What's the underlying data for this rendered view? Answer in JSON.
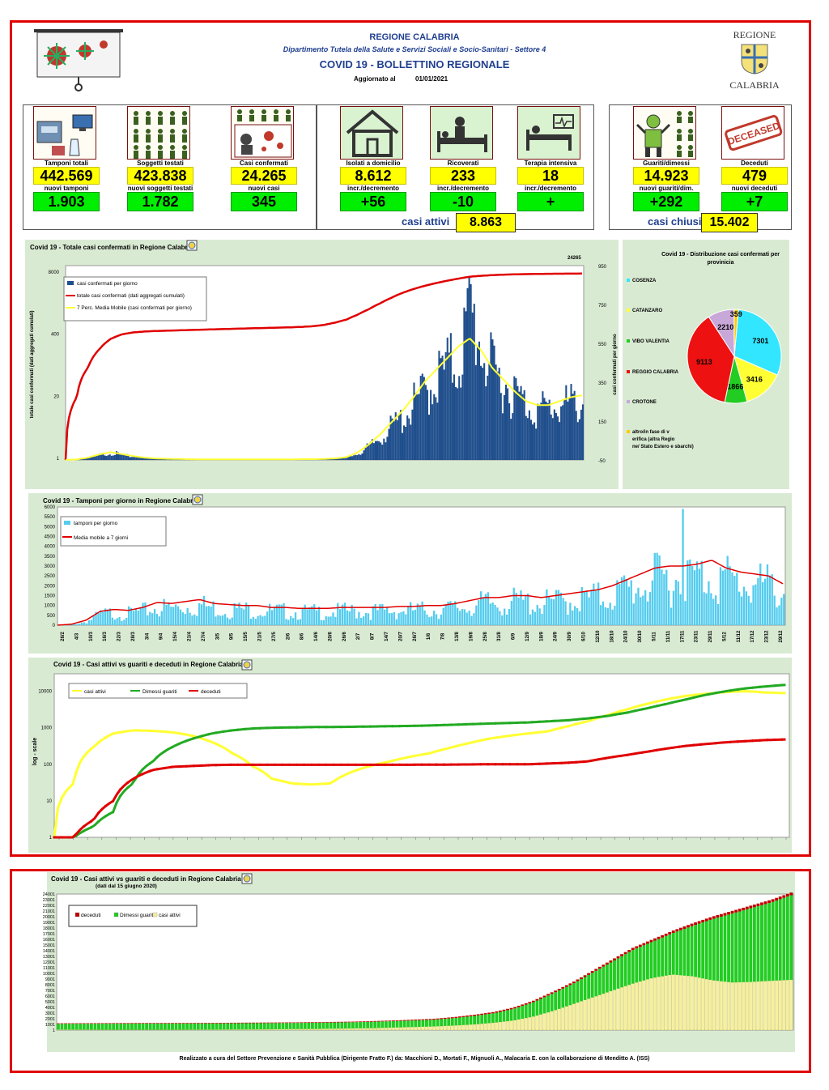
{
  "header": {
    "region": "REGIONE CALABRIA",
    "department": "Dipartimento Tutela della Salute e Servizi Sociali e Socio-Sanitari - Settore 4",
    "title": "COVID 19 - BOLLETTINO REGIONALE",
    "updated_label": "Aggiornato al",
    "updated_date": "01/01/2021",
    "logo_top": "REGIONE",
    "logo_bottom": "CALABRIA"
  },
  "cards": [
    {
      "label": "Tamponi totali",
      "value": "442.569",
      "label2": "nuovi tamponi",
      "value2": "1.903"
    },
    {
      "label": "Soggetti testati",
      "value": "423.838",
      "label2": "nuovi soggetti testati",
      "value2": "1.782"
    },
    {
      "label": "Casi confermati",
      "value": "24.265",
      "label2": "nuovi casi",
      "value2": "345"
    },
    {
      "label": "Isolati a domicilio",
      "value": "8.612",
      "label2": "incr./decremento",
      "value2": "+56"
    },
    {
      "label": "Ricoverati",
      "value": "233",
      "label2": "incr./decremento",
      "value2": "-10"
    },
    {
      "label": "Terapia intensiva",
      "value": "18",
      "label2": "incr./decremento",
      "value2": "+"
    },
    {
      "label": "Guariti/dimessi",
      "value": "14.923",
      "label2": "nuovi guariti/dim.",
      "value2": "+292"
    },
    {
      "label": "Deceduti",
      "value": "479",
      "label2": "nuovi deceduti",
      "value2": "+7"
    }
  ],
  "summary": {
    "attivi_label": "casi attivi",
    "attivi_value": "8.863",
    "chiusi_label": "casi chiusi",
    "chiusi_value": "15.402",
    "deceased_stamp": "DECEASED"
  },
  "colors": {
    "frame": "#e00000",
    "bar_blue": "#1f4e8c",
    "red": "#e00000",
    "yellow": "#ffff33",
    "cyan": "#00e5ff",
    "green": "#22aa22",
    "light_blue": "#55ccee",
    "panel_bg": "#d9ead3"
  },
  "icons": [
    "lab-machine-icon",
    "people-crowd-icon",
    "virus-patient-icon",
    "house-icon",
    "hospital-bed-icon",
    "icu-bed-icon",
    "recovered-person-icon",
    "deceased-stamp-icon"
  ],
  "chart_data": [
    {
      "type": "bar+line",
      "title": "Covid 19 - Totale casi confermati in Regione Calabria",
      "ylabel_left": "totale casi confermati (dati aggregati cumulati)",
      "ylabel_right": "casi confermati per giorno",
      "left_ticks": [
        "8000",
        "400",
        "20",
        "1"
      ],
      "right_ticks": [
        "950",
        "750",
        "550",
        "350",
        "150",
        "-50"
      ],
      "peak_label": "24265",
      "legend": [
        "casi confermati per giorno",
        "totale casi confermati (dati aggregati cumulati)",
        "7 Perc. Media Mobile (casi confermati per giorno)"
      ],
      "daily_profile": [
        0,
        2,
        10,
        30,
        45,
        30,
        18,
        10,
        8,
        5,
        4,
        3,
        3,
        2,
        2,
        2,
        2,
        2,
        2,
        3,
        3,
        4,
        4,
        5,
        8,
        15,
        40,
        80,
        140,
        200,
        260,
        340,
        420,
        500,
        560,
        620,
        900,
        700,
        520,
        480,
        400,
        340,
        300,
        320,
        330,
        340,
        350
      ],
      "ma_profile": [
        0,
        3,
        12,
        28,
        40,
        30,
        20,
        12,
        8,
        6,
        5,
        4,
        3,
        3,
        3,
        3,
        3,
        3,
        3,
        3,
        3,
        4,
        4,
        5,
        8,
        14,
        38,
        78,
        130,
        190,
        250,
        320,
        400,
        460,
        520,
        580,
        620,
        560,
        470,
        410,
        350,
        300,
        280,
        280,
        300,
        320,
        330
      ],
      "cum_profile": [
        1,
        30,
        150,
        400,
        700,
        900,
        1000,
        1050,
        1080,
        1100,
        1120,
        1140,
        1160,
        1180,
        1200,
        1220,
        1240,
        1260,
        1280,
        1300,
        1320,
        1350,
        1400,
        1500,
        1700,
        2000,
        2600,
        3500,
        4800,
        6500,
        8500,
        10500,
        12500,
        14500,
        16500,
        18500,
        20500,
        21500,
        22300,
        22900,
        23300,
        23600,
        23800,
        24000,
        24100,
        24200,
        24265
      ]
    },
    {
      "type": "pie",
      "title": "Covid 19 - Distribuzione casi confermati per provinicia",
      "categories": [
        "COSENZA",
        "CATANZARO",
        "VIBO VALENTIA",
        "REGGIO CALABRIA",
        "CROTONE",
        "altro/in fase di verifica (altra Regione/ Stato Estero e sbarchi)"
      ],
      "values": [
        7301,
        3416,
        1866,
        9113,
        2210,
        359
      ],
      "colors": [
        "#33e6ff",
        "#ffff33",
        "#22cc22",
        "#ee1111",
        "#c8a8d8",
        "#ffcc00"
      ]
    },
    {
      "type": "bar+line",
      "title": "Covid 19 - Tamponi per giorno in Regione Calabria",
      "legend": [
        "tamponi per giorno",
        "Media mobile a 7 giorni"
      ],
      "y_ticks": [
        "6000",
        "5500",
        "5000",
        "4500",
        "4000",
        "3500",
        "3000",
        "2500",
        "2000",
        "1500",
        "1000",
        "500",
        "0"
      ],
      "ylim": [
        0,
        6000
      ],
      "x_ticks": [
        "26/2",
        "4/3",
        "10/3",
        "16/3",
        "22/3",
        "28/3",
        "3/4",
        "9/4",
        "15/4",
        "21/4",
        "27/4",
        "3/5",
        "9/5",
        "15/5",
        "21/5",
        "27/5",
        "2/6",
        "8/6",
        "14/6",
        "20/6",
        "26/6",
        "2/7",
        "8/7",
        "14/7",
        "20/7",
        "26/7",
        "1/8",
        "7/8",
        "13/8",
        "19/8",
        "25/8",
        "31/8",
        "6/9",
        "12/9",
        "18/9",
        "24/9",
        "30/9",
        "6/10",
        "12/10",
        "18/10",
        "24/10",
        "30/10",
        "5/11",
        "11/11",
        "17/11",
        "23/11",
        "29/11",
        "5/12",
        "11/12",
        "17/12",
        "23/12",
        "29/12"
      ],
      "ma_profile": [
        0,
        50,
        250,
        700,
        800,
        750,
        900,
        1150,
        1100,
        1200,
        1300,
        1100,
        1050,
        1000,
        1000,
        900,
        900,
        850,
        850,
        850,
        900,
        900,
        900,
        900,
        950,
        950,
        1000,
        1000,
        1100,
        1250,
        1400,
        1400,
        1500,
        1500,
        1400,
        1500,
        1600,
        1700,
        1800,
        2000,
        2300,
        2600,
        2900,
        3000,
        3000,
        3100,
        3300,
        2900,
        2700,
        2600,
        2500,
        2100
      ]
    },
    {
      "type": "line",
      "title": "Covid 19 - Casi attivi vs guariti e deceduti in Regione Calabria",
      "ylabel": "log - scale",
      "y_ticks": [
        "10000",
        "1000",
        "100",
        "10",
        "1"
      ],
      "legend": [
        "casi attivi",
        "Dimessi guariti",
        "deceduti"
      ],
      "series": [
        {
          "name": "casi attivi",
          "values": [
            1,
            30,
            300,
            700,
            850,
            820,
            750,
            600,
            400,
            200,
            90,
            40,
            30,
            28,
            30,
            60,
            90,
            120,
            160,
            200,
            280,
            380,
            500,
            600,
            700,
            800,
            1100,
            1500,
            2200,
            3200,
            4500,
            6000,
            7500,
            8500,
            9500,
            10000,
            9200,
            8863
          ]
        },
        {
          "name": "Dimessi guariti",
          "values": [
            1,
            1,
            2,
            5,
            30,
            120,
            300,
            500,
            700,
            850,
            950,
            1000,
            1020,
            1040,
            1050,
            1060,
            1080,
            1100,
            1120,
            1150,
            1200,
            1250,
            1300,
            1350,
            1400,
            1500,
            1600,
            1800,
            2100,
            2600,
            3400,
            4500,
            6000,
            8000,
            10000,
            12000,
            13500,
            14923
          ]
        },
        {
          "name": "deceduti",
          "values": [
            1,
            1,
            3,
            10,
            40,
            70,
            85,
            90,
            95,
            97,
            97,
            97,
            97,
            97,
            97,
            97,
            97,
            97,
            97,
            98,
            98,
            99,
            100,
            100,
            100,
            105,
            110,
            120,
            150,
            180,
            220,
            270,
            320,
            360,
            400,
            430,
            460,
            479
          ]
        }
      ]
    },
    {
      "type": "stacked-bar",
      "title": "Covid 19 - Casi attivi vs guariti e deceduti in Regione Calabria",
      "subtitle": "(dati dal 15 giugno 2020)",
      "legend": [
        "deceduti",
        "Dimessi guariti",
        "casi attivi"
      ],
      "y_ticks": [
        "24001",
        "23001",
        "22001",
        "21001",
        "20001",
        "19001",
        "18001",
        "17001",
        "16001",
        "15001",
        "14001",
        "13001",
        "12001",
        "11001",
        "10001",
        "9001",
        "8001",
        "7001",
        "6001",
        "5001",
        "4001",
        "3001",
        "2001",
        "1001",
        "1"
      ],
      "ylim": [
        1,
        24001
      ],
      "total_profile": [
        1200,
        1210,
        1220,
        1230,
        1240,
        1250,
        1260,
        1270,
        1280,
        1300,
        1320,
        1340,
        1360,
        1400,
        1450,
        1500,
        1600,
        1700,
        1850,
        2000,
        2300,
        2700,
        3200,
        4000,
        5200,
        6800,
        8500,
        10500,
        12500,
        14500,
        16000,
        17500,
        18800,
        20000,
        21000,
        22000,
        23000,
        24265
      ],
      "attivi_profile": [
        80,
        70,
        60,
        50,
        50,
        50,
        60,
        70,
        80,
        100,
        120,
        150,
        180,
        200,
        250,
        300,
        350,
        450,
        550,
        650,
        800,
        1000,
        1300,
        1700,
        2400,
        3400,
        4600,
        5800,
        7000,
        8200,
        9200,
        9800,
        9500,
        8800,
        8400,
        8500,
        8700,
        8863
      ],
      "deceduti_profile": [
        97,
        97,
        97,
        97,
        97,
        97,
        97,
        97,
        97,
        98,
        98,
        99,
        100,
        100,
        102,
        105,
        110,
        120,
        140,
        160,
        180,
        200,
        220,
        240,
        260,
        280,
        300,
        330,
        360,
        380,
        400,
        420,
        440,
        455,
        465,
        470,
        475,
        479
      ]
    }
  ],
  "footer": "Realizzato a cura del Settore Prevenzione e Sanità Pubblica (Dirigente Fratto F.) da:  Macchioni D., Mortati F., Mignuoli A., Malacaria E. con la collaborazione di Menditto A. (ISS)"
}
